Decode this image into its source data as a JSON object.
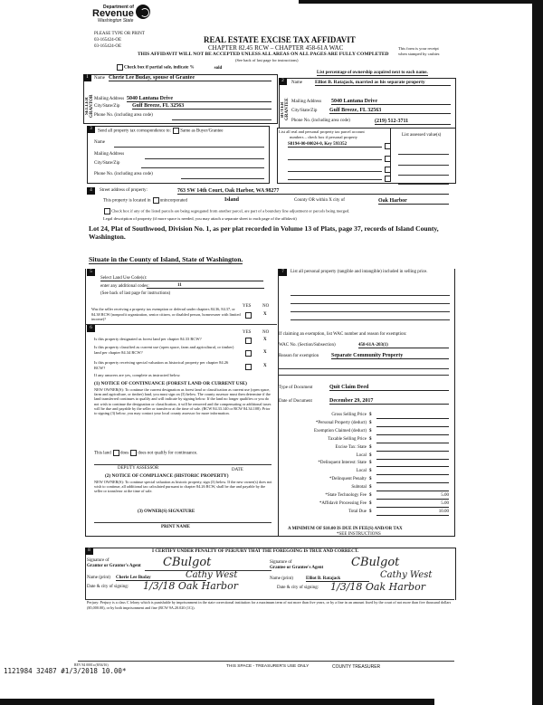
{
  "header": {
    "logo_top": "Department of",
    "logo_main": "Revenue",
    "logo_sub": "Washington State",
    "please": "PLEASE TYPE OR PRINT",
    "code1": "03-165424-OE",
    "code2": "03-165424-OE",
    "title": "REAL ESTATE EXCISE TAX AFFIDAVIT",
    "chapter": "CHAPTER 82.45 RCW – CHAPTER 458-61A WAC",
    "warning": "THIS AFFIDAVIT WILL NOT BE ACCEPTED UNLESS ALL AREAS ON ALL PAGES ARE FULLY COMPLETED",
    "see_back": "(See back of last page for instructions)",
    "receipt1": "This form is your receipt",
    "receipt2": "when stamped by cashier."
  },
  "partial": {
    "label": "Check box if partial sale, indicate %",
    "sold": "sold",
    "ownership_note": "List percentage of ownership acquired next to each name."
  },
  "seller": {
    "num": "1",
    "side": "SELLER GRANTOR",
    "name_label": "Name",
    "name": "Cherie Lee Buday, spouse of Grantee",
    "addr_label": "Mailing Address",
    "addr": "5040 Lantana Drive",
    "city_label": "City/State/Zip",
    "city": "Gulf Breeze, FL 32563",
    "phone_label": "Phone No. (including area code)"
  },
  "buyer": {
    "num": "2",
    "side": "BUYER GRANTEE",
    "name_label": "Name",
    "name": "Elliot B. Ratajack, married as his separate property",
    "addr_label": "Mailing Address",
    "addr": "5040 Lantana Drive",
    "city_label": "City/State/Zip",
    "city": "Gulf Breeze, FL 32563",
    "phone_label": "Phone No. (including area code)",
    "phone": "(219) 512-3711"
  },
  "section3": {
    "num": "3",
    "label": "Send all property tax correspondence to:",
    "same": "Same as Buyer/Grantee",
    "name_label": "Name",
    "addr_label": "Mailing Address",
    "city_label": "City/State/Zip",
    "phone_label": "Phone No. (including area code)",
    "parcel_header1": "List all real and personal property tax parcel account",
    "parcel_header2": "numbers – check box if personal property",
    "assessed_header": "List assessed value(s)",
    "parcel1": "S8194-00-00024-0, Key 593352"
  },
  "section4": {
    "num": "4",
    "street_label": "Street address of property:",
    "street": "763 SW 14th Court, Oak Harbor, WA  98277",
    "located_label": "This property is located in",
    "unincorporated": "unincorporated",
    "county": "Island",
    "county_or": "County OR  within X city of",
    "city": "Oak Harbor",
    "segregated": "Check box if any of the listed parcels are being segregated from another parcel, are part of a boundary line adjustment or parcels being merged.",
    "legal_label": "Legal description of property (if more space is needed, you may attach a separate sheet to each page of the affidavit)",
    "legal": "Lot 24, Plat of Southwood, Division No. 1, as per plat recorded in Volume 13 of Plats, page 37, records of Island County, Washington.",
    "situate": "Situate in the County of Island, State of Washington."
  },
  "section5": {
    "num": "5",
    "land_use": "Select Land Use Code(s):",
    "additional": "enter any additional codes:",
    "code": "11",
    "see_back": "(See back of last page for instructions)",
    "yes": "YES",
    "no": "NO",
    "exemption_q": "Was the seller receiving a property tax exemption or deferral under chapters 84.36, 84.37, or 84.38 RCW (nonprofit organization, senior citizen, or disabled person, homeowner with limited income)?",
    "exemption_a": "X"
  },
  "section6": {
    "num": "6",
    "yes": "YES",
    "no": "NO",
    "questions": [
      {
        "q": "Is this property designated as forest land per chapter 84.33 RCW?",
        "a": "X"
      },
      {
        "q": "Is this property classified as current use (open space, farm and agricultural, or timber) land per chapter 84.34 RCW?",
        "a": "X"
      },
      {
        "q": "Is this property receiving special valuation as historical property per chapter 84.26 RCW?",
        "a": "X"
      }
    ],
    "if_yes": "If any answers are yes, complete as instructed below.",
    "notice1_title": "(1) NOTICE OF CONTINUANCE (FOREST LAND OR CURRENT USE)",
    "notice1_text": "NEW OWNER(S): To continue the current designation as forest land or classification as current use (open space, farm and agriculture, or timber) land, you must sign on (3) below. The county assessor must then determine if the land transferred continues to qualify and will indicate by signing below. If the land no longer qualifies or you do not wish to continue the designation or classification, it will be removed and the compensating or additional taxes will be due and payable by the seller or transferor at the time of sale. (RCW 84.33.140 or RCW 84.34.108). Prior to signing (3) below, you may contact your local county assessor for more information.",
    "this_land": "This land",
    "does": "does",
    "does_not": "does not qualify for continuance.",
    "deputy": "DEPUTY ASSESSOR",
    "date": "DATE",
    "notice2_title": "(2) NOTICE OF COMPLIANCE (HISTORIC PROPERTY)",
    "notice2_text": "NEW OWNER(S): To continue special valuation as historic property, sign (3) below. If the new owner(s) does not wish to continue, all additional tax calculated pursuant to chapter 84.26 RCW, shall be due and payable by the seller or transferor at the time of sale.",
    "owner_sig": "(3) OWNER(S) SIGNATURE",
    "print_name": "PRINT NAME"
  },
  "section7": {
    "num": "7",
    "personal": "List all personal property (tangible and intangible) included in selling price.",
    "claiming": "If claiming an exemption, list WAC number and reason for exemption:",
    "wac_label": "WAC No. (Section/Subsection)",
    "wac": "458-61A-203(1)",
    "reason_label": "Reason for exemption",
    "reason": "Separate Community Property",
    "doc_type_label": "Type of Document",
    "doc_type": "Quit Claim Deed",
    "doc_date_label": "Date of Document",
    "doc_date": "December 29, 2017",
    "fees": [
      {
        "label": "Gross Selling Price",
        "value": ""
      },
      {
        "label": "*Personal Property (deduct)",
        "value": ""
      },
      {
        "label": "Exemption Claimed (deduct)",
        "value": ""
      },
      {
        "label": "Taxable Selling Price",
        "value": ""
      },
      {
        "label": "Excise Tax:  State",
        "value": ""
      },
      {
        "label": "Local",
        "value": ""
      },
      {
        "label": "*Delinquent Interest:  State",
        "value": ""
      },
      {
        "label": "Local",
        "value": ""
      },
      {
        "label": "*Delinquent Penalty",
        "value": ""
      },
      {
        "label": "Subtotal",
        "value": ""
      },
      {
        "label": "*State Technology Fee",
        "value": "5.00"
      },
      {
        "label": "*Affidavit Processing Fee",
        "value": "5.00"
      },
      {
        "label": "Total Due",
        "value": "10.00"
      }
    ],
    "currency": "$",
    "minimum": "A MINIMUM OF $10.00 IS DUE IN FEE(S) AND/OR TAX",
    "see_instr": "*SEE INSTRUCTIONS"
  },
  "section8": {
    "num": "8",
    "certify": "I CERTIFY UNDER PENALTY OF PERJURY THAT THE FOREGOING IS TRUE AND CORRECT.",
    "grantor_sig1": "Signature of",
    "grantor_sig2": "Grantor or Grantor's Agent",
    "grantor_name_label": "Name (print)",
    "grantor_name": "Cherie Lee Buday",
    "grantor_date_label": "Date & city of signing:",
    "grantee_sig1": "Signature of",
    "grantee_sig2": "Grantee or Grantee's Agent",
    "grantee_name_label": "Name (print)",
    "grantee_name": "Elliot B. Ratajack",
    "grantee_date_label": "Date & city of signing:",
    "hw_sig": "CBulgot",
    "hw_agent": "Cathy West",
    "hw_date": "1/3/18  Oak Harbor",
    "perjury": "Perjury: Perjury is a class C felony which is punishable by imprisonment in the state correctional institution for a maximum term of not more than five years, or by a fine in an amount fixed by the court of not more than five thousand dollars ($5,000.00), or by both imprisonment and fine (RCW 9A.20.020 (1C))."
  },
  "footer": {
    "rev": "REV 84 0001a (8/04/16)",
    "stamp": "1121984  32487  #1/3/2018  10.00*",
    "treasurer_space": "THIS SPACE - TREASURER'S USE ONLY",
    "county_treasurer": "COUNTY TREASURER"
  }
}
